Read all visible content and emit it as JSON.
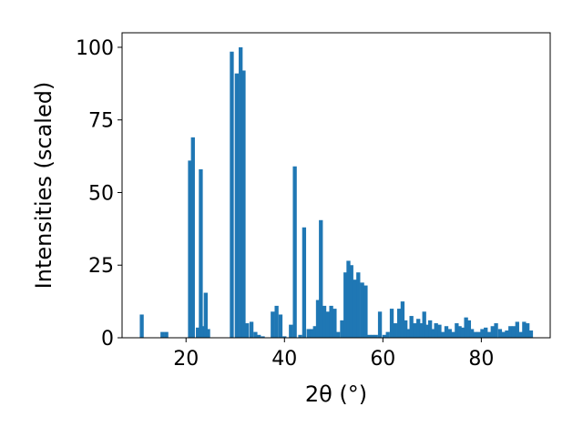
{
  "chart_data": {
    "type": "bar",
    "xlabel": "2θ (°)",
    "ylabel": "Intensities (scaled)",
    "xlim": [
      7,
      94
    ],
    "ylim": [
      0,
      105
    ],
    "xticks": [
      20,
      40,
      60,
      80
    ],
    "yticks": [
      0,
      25,
      50,
      75,
      100
    ],
    "bar_color": "#1f77b4",
    "bar_width": 0.8,
    "x": [
      11.0,
      15.2,
      16.0,
      20.8,
      21.4,
      22.4,
      23.0,
      23.5,
      24.0,
      24.5,
      29.3,
      30.3,
      31.1,
      31.7,
      32.4,
      33.3,
      34.1,
      34.8,
      35.6,
      37.6,
      38.4,
      39.2,
      40.0,
      41.3,
      42.1,
      43.2,
      44.0,
      44.9,
      45.6,
      46.2,
      46.8,
      47.4,
      48.1,
      48.8,
      49.5,
      50.2,
      50.9,
      51.7,
      52.4,
      53.0,
      53.6,
      54.3,
      55.0,
      55.8,
      56.5,
      57.2,
      57.9,
      58.6,
      59.4,
      60.3,
      61.0,
      61.8,
      62.5,
      63.3,
      64.0,
      64.6,
      65.2,
      65.8,
      66.5,
      67.2,
      67.8,
      68.4,
      69.0,
      69.6,
      70.2,
      70.8,
      71.5,
      72.2,
      72.9,
      73.6,
      74.3,
      75.0,
      75.6,
      76.2,
      76.9,
      77.5,
      78.1,
      78.8,
      79.5,
      80.2,
      80.9,
      81.6,
      82.3,
      83.0,
      83.8,
      84.5,
      85.2,
      85.9,
      86.6,
      87.3,
      88.0,
      88.7,
      89.4,
      90.1
    ],
    "values": [
      8,
      2,
      2,
      61,
      69,
      3.5,
      58,
      4,
      15.5,
      3,
      98.5,
      91,
      100,
      92,
      5,
      5.5,
      2,
      1,
      0.5,
      9,
      11,
      8,
      0.5,
      4.5,
      59,
      1,
      38,
      3,
      3,
      4,
      13,
      40.5,
      11,
      9,
      11,
      10,
      2,
      6,
      22.5,
      26.5,
      25,
      20,
      22.5,
      19,
      18,
      1,
      1,
      1,
      9,
      1,
      2,
      10,
      5,
      10,
      12.5,
      6,
      3,
      7.5,
      5,
      6.5,
      5,
      9,
      4.5,
      6,
      3,
      5,
      4.5,
      2,
      4,
      3,
      2,
      5,
      4,
      3.5,
      7,
      6,
      3,
      2,
      2,
      3,
      3.5,
      2,
      4,
      5,
      3,
      2,
      2.5,
      4,
      4,
      5.5,
      2,
      5.5,
      5,
      2.5
    ]
  }
}
